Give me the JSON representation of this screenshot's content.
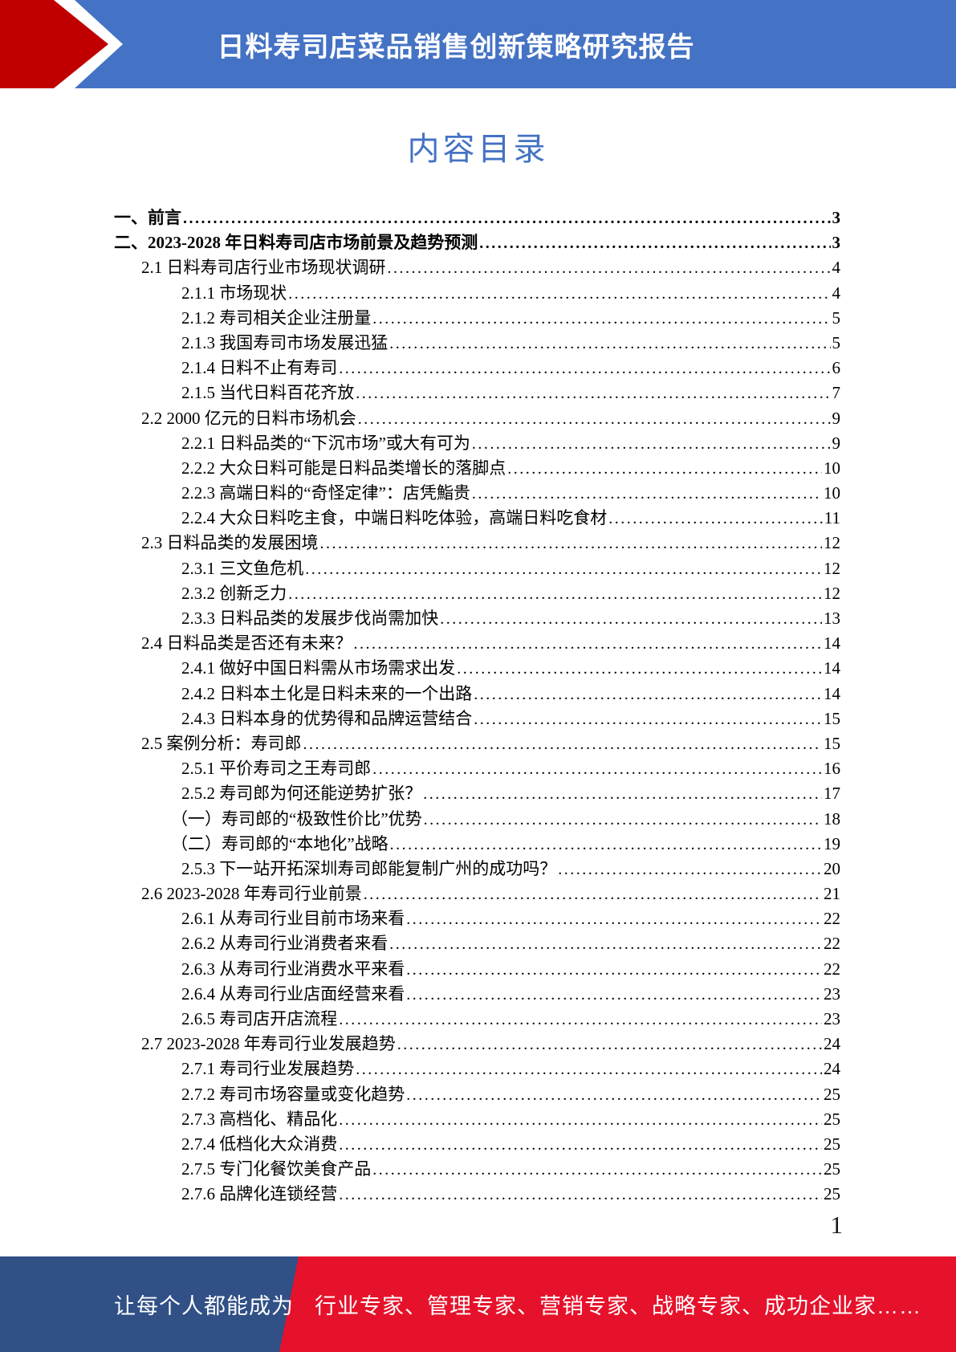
{
  "header": {
    "title": "日料寿司店菜品销售创新策略研究报告"
  },
  "toc": {
    "heading": "内容目录",
    "entries": [
      {
        "label": "一、前言",
        "page": "3",
        "level": "1",
        "bold": true
      },
      {
        "label": "二、2023-2028 年日料寿司店市场前景及趋势预测",
        "page": "3",
        "level": "1",
        "bold": true
      },
      {
        "label": "2.1 日料寿司店行业市场现状调研",
        "page": "4",
        "level": "2"
      },
      {
        "label": "2.1.1 市场现状",
        "page": "4",
        "level": "3"
      },
      {
        "label": "2.1.2 寿司相关企业注册量",
        "page": "5",
        "level": "3"
      },
      {
        "label": "2.1.3 我国寿司市场发展迅猛",
        "page": "5",
        "level": "3"
      },
      {
        "label": "2.1.4 日料不止有寿司",
        "page": "6",
        "level": "3"
      },
      {
        "label": "2.1.5 当代日料百花齐放",
        "page": "7",
        "level": "3"
      },
      {
        "label": "2.2 2000 亿元的日料市场机会",
        "page": "9",
        "level": "2"
      },
      {
        "label": "2.2.1 日料品类的“下沉市场”或大有可为",
        "page": "9",
        "level": "3"
      },
      {
        "label": "2.2.2 大众日料可能是日料品类增长的落脚点",
        "page": "10",
        "level": "3"
      },
      {
        "label": "2.2.3 高端日料的“奇怪定律”：店凭鮨贵",
        "page": "10",
        "level": "3"
      },
      {
        "label": "2.2.4 大众日料吃主食，中端日料吃体验，高端日料吃食材",
        "page": "11",
        "level": "3"
      },
      {
        "label": "2.3 日料品类的发展困境",
        "page": "12",
        "level": "2"
      },
      {
        "label": "2.3.1 三文鱼危机",
        "page": "12",
        "level": "3"
      },
      {
        "label": "2.3.2 创新乏力",
        "page": "12",
        "level": "3"
      },
      {
        "label": "2.3.3 日料品类的发展步伐尚需加快",
        "page": "13",
        "level": "3"
      },
      {
        "label": "2.4 日料品类是否还有未来？",
        "page": "14",
        "level": "2"
      },
      {
        "label": "2.4.1 做好中国日料需从市场需求出发",
        "page": "14",
        "level": "3"
      },
      {
        "label": "2.4.2 日料本土化是日料未来的一个出路",
        "page": "14",
        "level": "3"
      },
      {
        "label": "2.4.3 日料本身的优势得和品牌运营结合",
        "page": "15",
        "level": "3"
      },
      {
        "label": "2.5 案例分析：寿司郎",
        "page": "15",
        "level": "2"
      },
      {
        "label": "2.5.1 平价寿司之王寿司郎",
        "page": "16",
        "level": "3"
      },
      {
        "label": "2.5.2 寿司郎为何还能逆势扩张？",
        "page": "17",
        "level": "3"
      },
      {
        "label": "（一）寿司郎的“极致性价比”优势",
        "page": "18",
        "level": "p"
      },
      {
        "label": "（二）寿司郎的“本地化”战略",
        "page": "19",
        "level": "p"
      },
      {
        "label": "2.5.3 下一站开拓深圳寿司郎能复制广州的成功吗？",
        "page": "20",
        "level": "3"
      },
      {
        "label": "2.6 2023-2028 年寿司行业前景",
        "page": "21",
        "level": "2"
      },
      {
        "label": "2.6.1 从寿司行业目前市场来看",
        "page": "22",
        "level": "3"
      },
      {
        "label": "2.6.2 从寿司行业消费者来看",
        "page": "22",
        "level": "3"
      },
      {
        "label": "2.6.3 从寿司行业消费水平来看",
        "page": "22",
        "level": "3"
      },
      {
        "label": "2.6.4 从寿司行业店面经营来看",
        "page": "23",
        "level": "3"
      },
      {
        "label": "2.6.5 寿司店开店流程",
        "page": "23",
        "level": "3"
      },
      {
        "label": "2.7 2023-2028 年寿司行业发展趋势",
        "page": "24",
        "level": "2"
      },
      {
        "label": "2.7.1 寿司行业发展趋势",
        "page": "24",
        "level": "3"
      },
      {
        "label": "2.7.2 寿司市场容量或变化趋势",
        "page": "25",
        "level": "3"
      },
      {
        "label": "2.7.3 高档化、精品化",
        "page": "25",
        "level": "3"
      },
      {
        "label": "2.7.4 低档化大众消费",
        "page": "25",
        "level": "3"
      },
      {
        "label": "2.7.5 专门化餐饮美食产品",
        "page": "25",
        "level": "3"
      },
      {
        "label": "2.7.6 品牌化连锁经营",
        "page": "25",
        "level": "3"
      }
    ]
  },
  "page_number": "1",
  "footer": {
    "left_text": "让每个人都能成为",
    "right_text": "行业专家、管理专家、营销专家、战略专家、成功企业家……"
  },
  "colors": {
    "banner_blue": "#4472C4",
    "arrow_red": "#C00000",
    "heading_blue": "#4472C4",
    "footer_blue": "#305086",
    "footer_red": "#E6122B"
  }
}
